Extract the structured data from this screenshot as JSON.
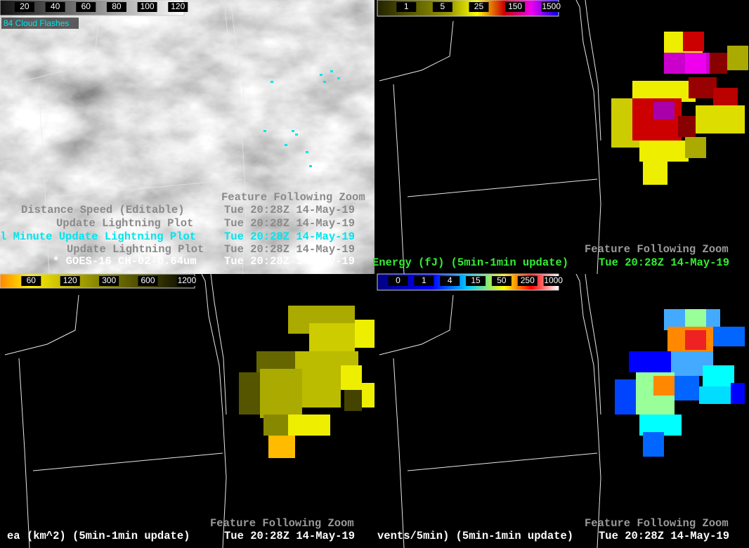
{
  "panels": [
    {
      "colorbar_labels": [
        20,
        40,
        60,
        80,
        100,
        120
      ],
      "overlay": "84 Cloud Flashes",
      "lines": [
        {
          "label": "Feature Following Zoom",
          "color": "#8a8a8a"
        },
        {
          "label": "Distance Speed (Editable)",
          "time": "Tue 20:28Z 14-May-19",
          "color": "#8a8a8a"
        },
        {
          "label": "Update Lightning Plot",
          "time": "Tue 20:28Z 14-May-19",
          "color": "#8a8a8a"
        },
        {
          "label": "l Minute Update Lightning Plot",
          "time": "Tue 20:28Z 14-May-19",
          "color": "#00e5ee"
        },
        {
          "label": "Update Lightning Plot",
          "time": "Tue 20:28Z 14-May-19",
          "color": "#8a8a8a"
        },
        {
          "label": "* GOES-16 CH-02-0.64um",
          "time": "Tue 20:28Z 14-May-19",
          "color": "#ffffff"
        }
      ]
    },
    {
      "colorbar_labels": [
        1,
        5,
        25,
        150,
        1500
      ],
      "lines": [
        {
          "label": "Feature Following Zoom",
          "color": "#9a9a9a"
        },
        {
          "label": "Energy (fJ) (5min-1min update)",
          "time": "Tue 20:28Z 14-May-19",
          "color": "#33ee33"
        }
      ]
    },
    {
      "colorbar_labels": [
        60,
        120,
        300,
        600,
        1200
      ],
      "lines": [
        {
          "label": "Feature Following Zoom",
          "color": "#9a9a9a"
        },
        {
          "label": "ea (km^2) (5min-1min update)",
          "time": "Tue 20:28Z 14-May-19",
          "color": "#ffffff"
        }
      ]
    },
    {
      "colorbar_labels": [
        0,
        1,
        4,
        15,
        50,
        250,
        1000
      ],
      "lines": [
        {
          "label": "Feature Following Zoom",
          "color": "#9a9a9a"
        },
        {
          "label": "vents/5min) (5min-1min update)",
          "time": "Tue 20:28Z 14-May-19",
          "color": "#ffffff"
        }
      ]
    }
  ]
}
